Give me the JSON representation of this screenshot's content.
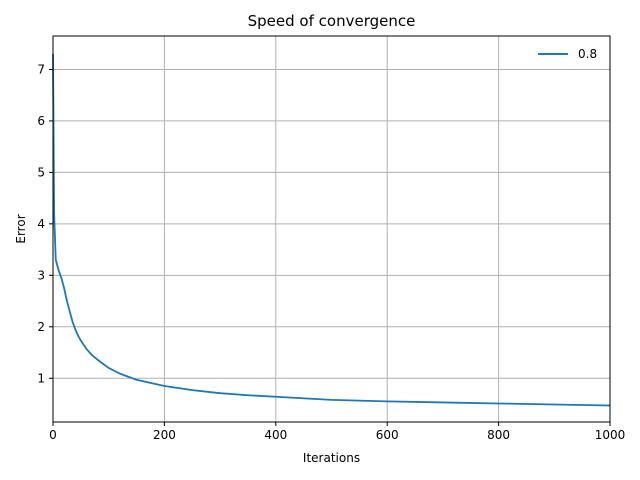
{
  "chart_data": {
    "type": "line",
    "title": "Speed of convergence",
    "xlabel": "Iterations",
    "ylabel": "Error",
    "xlim": [
      0,
      1000
    ],
    "ylim": [
      0.15,
      7.65
    ],
    "xticks": [
      0,
      200,
      400,
      600,
      800,
      1000
    ],
    "yticks": [
      1,
      2,
      3,
      4,
      5,
      6,
      7
    ],
    "grid": true,
    "legend_position": "top-right",
    "series": [
      {
        "name": "0.8",
        "color": "#1f77b4",
        "x": [
          0,
          2,
          5,
          10,
          15,
          20,
          25,
          30,
          35,
          40,
          45,
          50,
          60,
          70,
          80,
          90,
          100,
          120,
          150,
          200,
          250,
          300,
          350,
          400,
          500,
          600,
          700,
          800,
          900,
          1000
        ],
        "y": [
          7.3,
          4.2,
          3.3,
          3.1,
          2.95,
          2.75,
          2.5,
          2.3,
          2.1,
          1.95,
          1.83,
          1.73,
          1.57,
          1.45,
          1.36,
          1.28,
          1.2,
          1.09,
          0.97,
          0.85,
          0.77,
          0.71,
          0.67,
          0.64,
          0.58,
          0.55,
          0.53,
          0.51,
          0.49,
          0.47
        ]
      }
    ]
  }
}
